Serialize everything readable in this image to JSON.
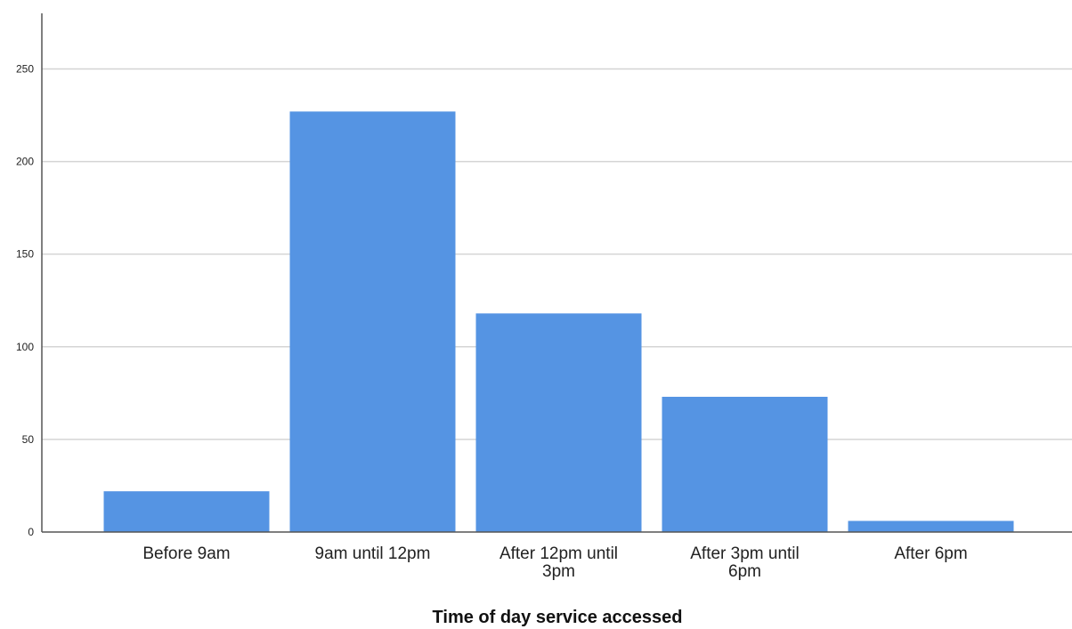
{
  "chart_data": {
    "type": "bar",
    "title": "",
    "xlabel": "Time of day service accessed",
    "ylabel": "",
    "categories": [
      [
        "Before 9am"
      ],
      [
        "9am until 12pm"
      ],
      [
        "After 12pm until",
        "3pm"
      ],
      [
        "After 3pm until",
        "6pm"
      ],
      [
        "After 6pm"
      ]
    ],
    "values": [
      22,
      227,
      118,
      73,
      6
    ],
    "ylim": [
      0,
      280
    ],
    "yticks": [
      0,
      50,
      100,
      150,
      200,
      250
    ],
    "grid": true,
    "bar_color": "#5594e3",
    "grid_color": "#d4d4d4",
    "axis_color": "#555555"
  }
}
